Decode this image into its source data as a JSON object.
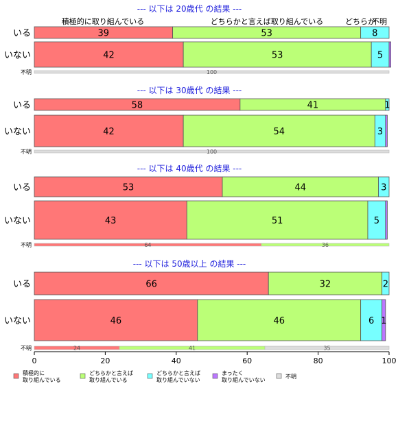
{
  "chart_data": {
    "type": "bar",
    "orientation": "horizontal",
    "stacked": true,
    "xlim": [
      0,
      100
    ],
    "x_ticks": [
      0,
      20,
      40,
      60,
      80,
      100
    ],
    "header_labels": [
      "積極的に取り組んでいる",
      "どちらかと言えば取り組んでいる",
      "どちらか",
      "不明"
    ],
    "colors": {
      "積極的に取り組んでいる": "#FF7777",
      "どちらかと言えば取り組んでいる": "#BBFF77",
      "どちらかと言えば取り組んでいない": "#77FFFF",
      "まったく取り組んでいない": "#BB77FF",
      "不明": "#DDDDDD"
    },
    "legend": [
      {
        "key": "積極的に取り組んでいる",
        "lines": [
          "積極的に",
          "取り組んでいる"
        ]
      },
      {
        "key": "どちらかと言えば取り組んでいる",
        "lines": [
          "どちらかと言えば",
          "取り組んでいる"
        ]
      },
      {
        "key": "どちらかと言えば取り組んでいない",
        "lines": [
          "どちらかと言えば",
          "取り組んでいない"
        ]
      },
      {
        "key": "まったく取り組んでいない",
        "lines": [
          "まったく",
          "取り組んでいない"
        ]
      },
      {
        "key": "不明",
        "lines": [
          "不明"
        ]
      }
    ],
    "groups": [
      {
        "title": "--- 以下は 20歳代 の結果 ---",
        "rows": [
          {
            "label": "いる",
            "segments": [
              {
                "cat": "積極的に取り組んでいる",
                "value": 39,
                "label": "39"
              },
              {
                "cat": "どちらかと言えば取り組んでいる",
                "value": 53,
                "label": "53"
              },
              {
                "cat": "どちらかと言えば取り組んでいない",
                "value": 8,
                "label": "8"
              }
            ]
          },
          {
            "label": "いない",
            "segments": [
              {
                "cat": "積極的に取り組んでいる",
                "value": 42,
                "label": "42"
              },
              {
                "cat": "どちらかと言えば取り組んでいる",
                "value": 53,
                "label": "53"
              },
              {
                "cat": "どちらかと言えば取り組んでいない",
                "value": 5,
                "label": "5"
              },
              {
                "cat": "まったく取り組んでいない",
                "value": 0.5,
                "label": ""
              }
            ]
          },
          {
            "label": "不明",
            "thin": true,
            "segments": [
              {
                "cat": "不明",
                "value": 100,
                "label": "100"
              }
            ]
          }
        ]
      },
      {
        "title": "--- 以下は 30歳代 の結果 ---",
        "rows": [
          {
            "label": "いる",
            "segments": [
              {
                "cat": "積極的に取り組んでいる",
                "value": 58,
                "label": "58"
              },
              {
                "cat": "どちらかと言えば取り組んでいる",
                "value": 41,
                "label": "41"
              },
              {
                "cat": "どちらかと言えば取り組んでいない",
                "value": 1,
                "label": "1"
              }
            ]
          },
          {
            "label": "いない",
            "segments": [
              {
                "cat": "積極的に取り組んでいる",
                "value": 42,
                "label": "42"
              },
              {
                "cat": "どちらかと言えば取り組んでいる",
                "value": 54,
                "label": "54"
              },
              {
                "cat": "どちらかと言えば取り組んでいない",
                "value": 3,
                "label": "3"
              },
              {
                "cat": "まったく取り組んでいない",
                "value": 0.5,
                "label": ""
              }
            ]
          },
          {
            "label": "不明",
            "thin": true,
            "segments": [
              {
                "cat": "不明",
                "value": 100,
                "label": "100"
              }
            ]
          }
        ]
      },
      {
        "title": "--- 以下は 40歳代 の結果 ---",
        "rows": [
          {
            "label": "いる",
            "segments": [
              {
                "cat": "積極的に取り組んでいる",
                "value": 53,
                "label": "53"
              },
              {
                "cat": "どちらかと言えば取り組んでいる",
                "value": 44,
                "label": "44"
              },
              {
                "cat": "どちらかと言えば取り組んでいない",
                "value": 3,
                "label": "3"
              }
            ]
          },
          {
            "label": "いない",
            "segments": [
              {
                "cat": "積極的に取り組んでいる",
                "value": 43,
                "label": "43"
              },
              {
                "cat": "どちらかと言えば取り組んでいる",
                "value": 51,
                "label": "51"
              },
              {
                "cat": "どちらかと言えば取り組んでいない",
                "value": 5,
                "label": "5"
              },
              {
                "cat": "まったく取り組んでいない",
                "value": 0.5,
                "label": ""
              }
            ]
          },
          {
            "label": "不明",
            "thin": true,
            "segments": [
              {
                "cat": "積極的に取り組んでいる",
                "value": 64,
                "label": "64"
              },
              {
                "cat": "どちらかと言えば取り組んでいる",
                "value": 36,
                "label": "36"
              }
            ]
          }
        ]
      },
      {
        "title": "--- 以下は 50歳以上 の結果 ---",
        "rows": [
          {
            "label": "いる",
            "segments": [
              {
                "cat": "積極的に取り組んでいる",
                "value": 66,
                "label": "66"
              },
              {
                "cat": "どちらかと言えば取り組んでいる",
                "value": 32,
                "label": "32"
              },
              {
                "cat": "どちらかと言えば取り組んでいない",
                "value": 2,
                "label": "2"
              }
            ]
          },
          {
            "label": "いない",
            "segments": [
              {
                "cat": "積極的に取り組んでいる",
                "value": 46,
                "label": "46"
              },
              {
                "cat": "どちらかと言えば取り組んでいる",
                "value": 46,
                "label": "46"
              },
              {
                "cat": "どちらかと言えば取り組んでいない",
                "value": 6,
                "label": "6"
              },
              {
                "cat": "まったく取り組んでいない",
                "value": 1,
                "label": "1"
              }
            ]
          },
          {
            "label": "不明",
            "thin": true,
            "segments": [
              {
                "cat": "積極的に取り組んでいる",
                "value": 24,
                "label": "24"
              },
              {
                "cat": "どちらかと言えば取り組んでいる",
                "value": 41,
                "label": "41"
              },
              {
                "cat": "不明",
                "value": 35,
                "label": "35"
              }
            ]
          }
        ]
      }
    ]
  }
}
